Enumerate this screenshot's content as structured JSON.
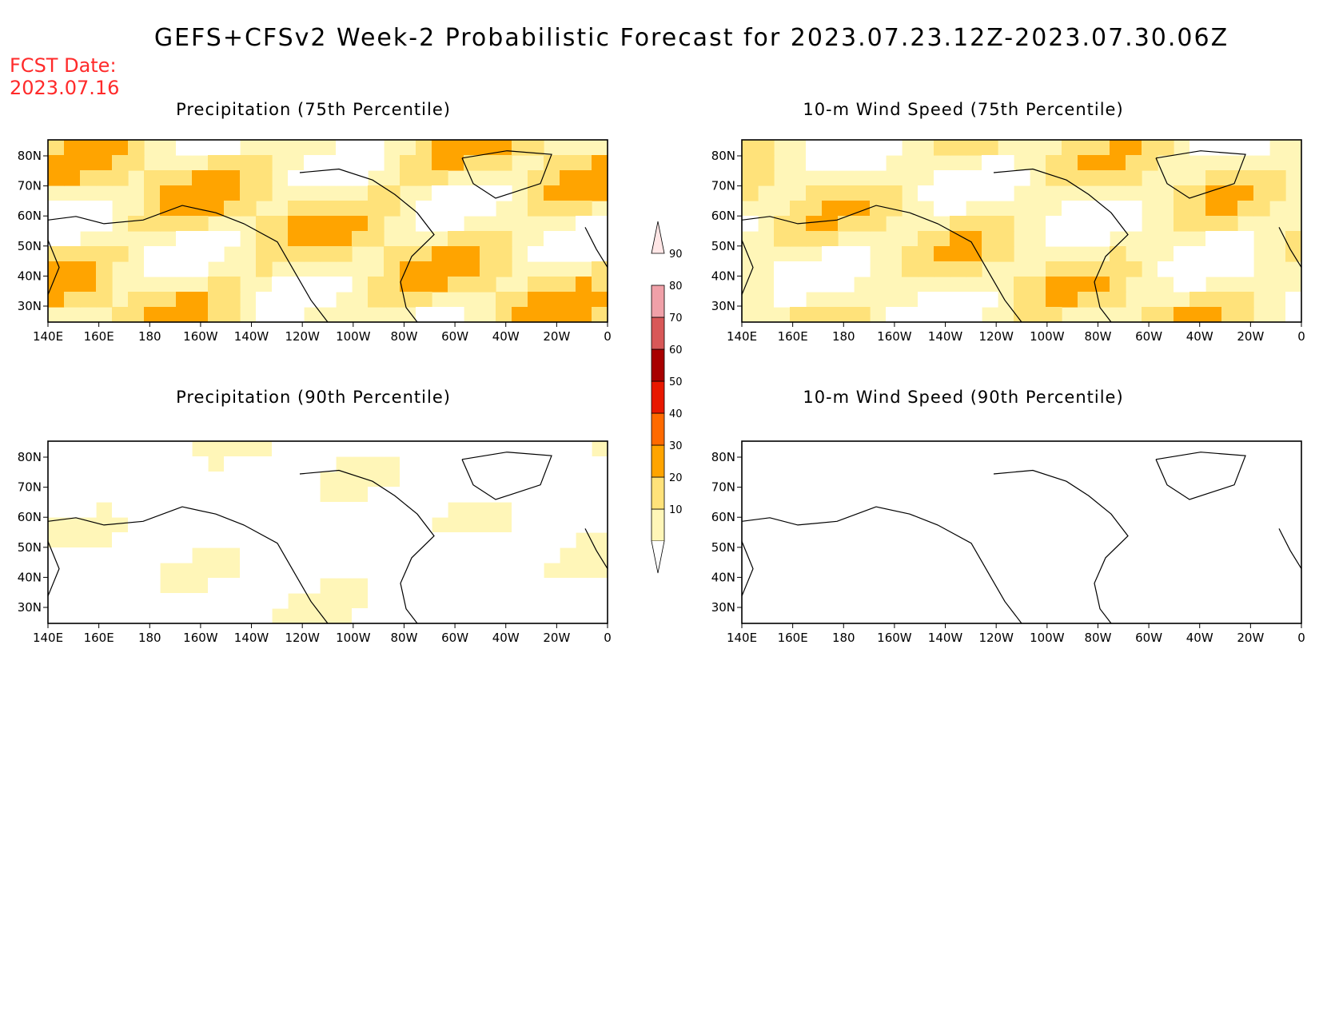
{
  "header": {
    "title": "GEFS+CFSv2 Week-2 Probabilistic Forecast for 2023.07.23.12Z-2023.07.30.06Z",
    "fcst_label": "FCST Date:",
    "fcst_date": "2023.07.16"
  },
  "panels": [
    {
      "title": "Precipitation (75th Percentile)",
      "intensity": 0.75
    },
    {
      "title": "10-m Wind Speed (75th Percentile)",
      "intensity": 0.65
    },
    {
      "title": "Precipitation (90th Percentile)",
      "intensity": 0.25
    },
    {
      "title": "10-m Wind Speed (90th Percentile)",
      "intensity": 0.15
    }
  ],
  "axes": {
    "lon_labels": [
      "140E",
      "160E",
      "180",
      "160W",
      "140W",
      "120W",
      "100W",
      "80W",
      "60W",
      "40W",
      "20W",
      "0"
    ],
    "lat_labels": [
      "80N",
      "70N",
      "60N",
      "50N",
      "40N",
      "30N"
    ]
  },
  "colorbar": {
    "levels": [
      "10",
      "20",
      "30",
      "40",
      "50",
      "60",
      "70",
      "80",
      "90"
    ],
    "colors": [
      "#fff6b8",
      "#ffe27a",
      "#ffa400",
      "#ff6a00",
      "#e81800",
      "#a80000",
      "#d85858",
      "#f0a0a8",
      "#ffe6e6"
    ]
  }
}
